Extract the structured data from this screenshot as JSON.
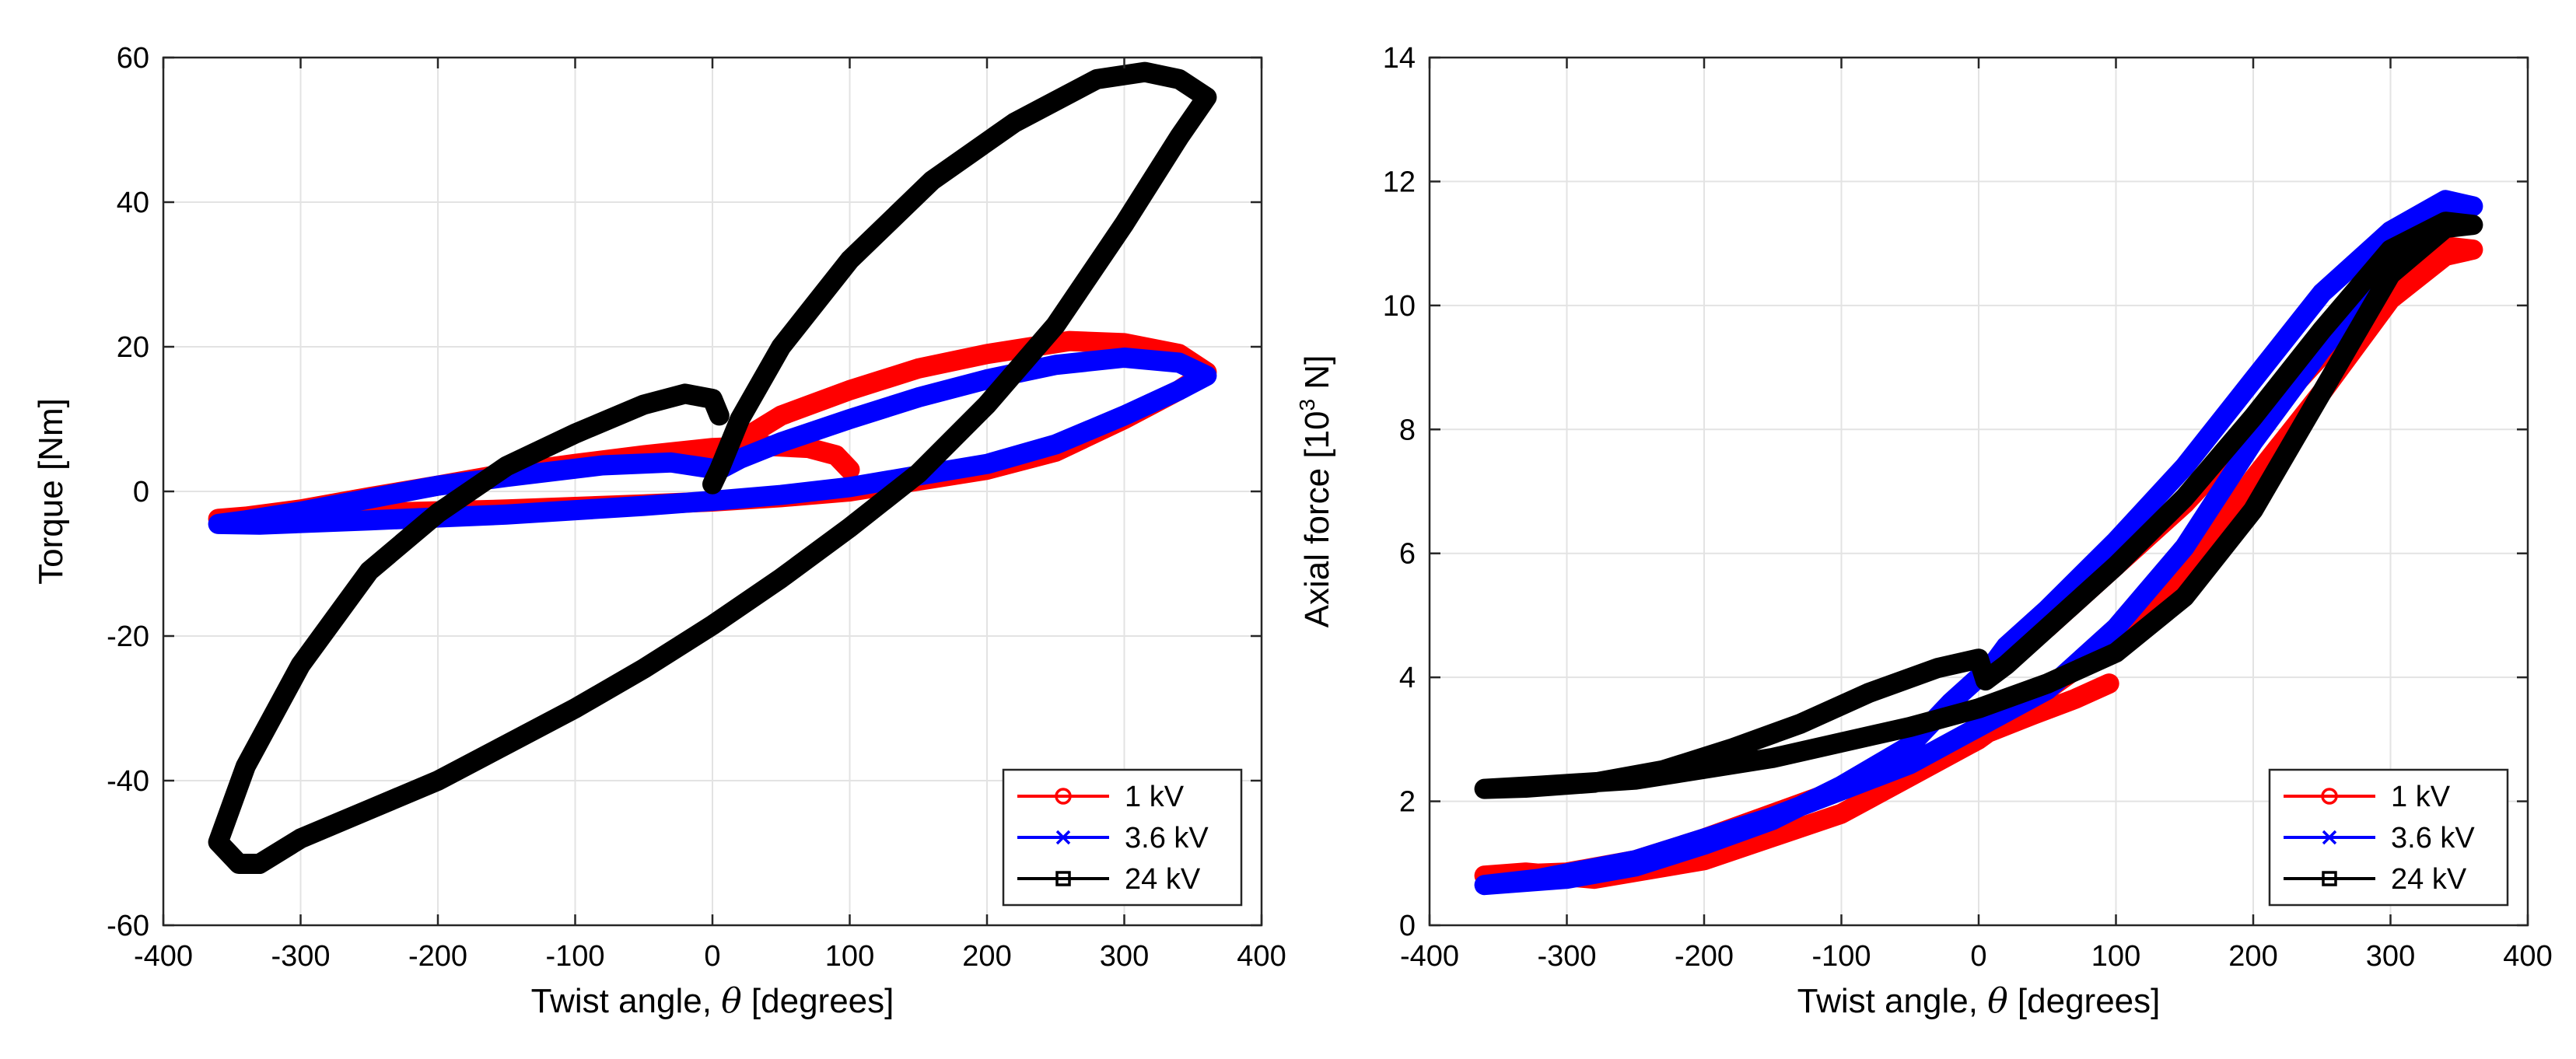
{
  "chart_data": [
    {
      "type": "line",
      "title": "",
      "xlabel_prefix": "Twist angle, ",
      "xlabel_symbol": "θ",
      "xlabel_suffix": " [degrees]",
      "ylabel": "Torque [Nm]",
      "xlim": [
        -400,
        400
      ],
      "ylim": [
        -60,
        60
      ],
      "xticks": [
        -400,
        -300,
        -200,
        -100,
        0,
        100,
        200,
        300,
        400
      ],
      "yticks": [
        -60,
        -40,
        -20,
        0,
        20,
        40,
        60
      ],
      "grid": true,
      "legend_position": "bottom-right",
      "series": [
        {
          "name": "1 kV",
          "color": "#ff0000",
          "marker": "circle",
          "points": [
            [
              100,
              3
            ],
            [
              90,
              5
            ],
            [
              70,
              6
            ],
            [
              40,
              6.3
            ],
            [
              0,
              6
            ],
            [
              -50,
              5
            ],
            [
              -100,
              3.8
            ],
            [
              -150,
              2.5
            ],
            [
              -200,
              0.8
            ],
            [
              -250,
              -0.8
            ],
            [
              -300,
              -2.5
            ],
            [
              -340,
              -3.5
            ],
            [
              -360,
              -3.8
            ],
            [
              -330,
              -3.6
            ],
            [
              -250,
              -3
            ],
            [
              -150,
              -2.5
            ],
            [
              -50,
              -1.8
            ],
            [
              0,
              -1.4
            ],
            [
              50,
              -0.8
            ],
            [
              100,
              0
            ],
            [
              150,
              1.5
            ],
            [
              200,
              3
            ],
            [
              250,
              5.5
            ],
            [
              300,
              10
            ],
            [
              340,
              14
            ],
            [
              360,
              16.5
            ],
            [
              340,
              19
            ],
            [
              300,
              20.5
            ],
            [
              260,
              20.8
            ],
            [
              200,
              19
            ],
            [
              150,
              17
            ],
            [
              100,
              14
            ],
            [
              50,
              10.5
            ],
            [
              20,
              7
            ],
            [
              0,
              4
            ]
          ]
        },
        {
          "name": "3.6 kV",
          "color": "#0000ff",
          "marker": "x",
          "points": [
            [
              5,
              3
            ],
            [
              -30,
              4
            ],
            [
              -80,
              3.6
            ],
            [
              -150,
              2
            ],
            [
              -200,
              0.8
            ],
            [
              -250,
              -1
            ],
            [
              -300,
              -2.8
            ],
            [
              -340,
              -4
            ],
            [
              -360,
              -4.5
            ],
            [
              -330,
              -4.6
            ],
            [
              -250,
              -4
            ],
            [
              -150,
              -3.2
            ],
            [
              -50,
              -2
            ],
            [
              0,
              -1.3
            ],
            [
              50,
              -0.5
            ],
            [
              100,
              0.6
            ],
            [
              150,
              2.2
            ],
            [
              200,
              3.8
            ],
            [
              250,
              6.5
            ],
            [
              300,
              10.5
            ],
            [
              340,
              14
            ],
            [
              360,
              16
            ],
            [
              340,
              17.8
            ],
            [
              300,
              18.5
            ],
            [
              250,
              17.5
            ],
            [
              200,
              15.5
            ],
            [
              150,
              13
            ],
            [
              100,
              10
            ],
            [
              50,
              6.8
            ],
            [
              20,
              4.5
            ],
            [
              5,
              3
            ]
          ]
        },
        {
          "name": "24 kV",
          "color": "#000000",
          "marker": "square",
          "points": [
            [
              5,
              10.5
            ],
            [
              0,
              12.8
            ],
            [
              -20,
              13.5
            ],
            [
              -50,
              12
            ],
            [
              -100,
              8
            ],
            [
              -150,
              3.5
            ],
            [
              -200,
              -3
            ],
            [
              -250,
              -11
            ],
            [
              -300,
              -24
            ],
            [
              -340,
              -38
            ],
            [
              -360,
              -48.5
            ],
            [
              -345,
              -51.5
            ],
            [
              -330,
              -51.5
            ],
            [
              -300,
              -48
            ],
            [
              -250,
              -44
            ],
            [
              -200,
              -40
            ],
            [
              -150,
              -35
            ],
            [
              -100,
              -30
            ],
            [
              -50,
              -24.5
            ],
            [
              0,
              -18.5
            ],
            [
              50,
              -12
            ],
            [
              100,
              -5
            ],
            [
              150,
              2.5
            ],
            [
              200,
              12
            ],
            [
              250,
              23
            ],
            [
              300,
              37
            ],
            [
              340,
              49
            ],
            [
              360,
              54.5
            ],
            [
              340,
              57
            ],
            [
              315,
              58
            ],
            [
              280,
              57
            ],
            [
              220,
              51
            ],
            [
              160,
              43
            ],
            [
              100,
              32
            ],
            [
              50,
              20
            ],
            [
              20,
              10
            ],
            [
              5,
              3
            ],
            [
              0,
              1
            ]
          ]
        }
      ]
    },
    {
      "type": "line",
      "title": "",
      "xlabel_prefix": "Twist angle, ",
      "xlabel_symbol": "θ",
      "xlabel_suffix": " [degrees]",
      "ylabel_prefix": "Axial force [10",
      "ylabel_sup": "3",
      "ylabel_suffix": " N]",
      "xlim": [
        -400,
        400
      ],
      "ylim": [
        0,
        14
      ],
      "xticks": [
        -400,
        -300,
        -200,
        -100,
        0,
        100,
        200,
        300,
        400
      ],
      "yticks": [
        0,
        2,
        4,
        6,
        8,
        10,
        12,
        14
      ],
      "grid": true,
      "legend_position": "bottom-right",
      "series": [
        {
          "name": "1 kV",
          "color": "#ff0000",
          "marker": "circle",
          "points": [
            [
              95,
              3.9
            ],
            [
              70,
              3.65
            ],
            [
              40,
              3.4
            ],
            [
              0,
              3.05
            ],
            [
              -50,
              2.6
            ],
            [
              -100,
              2.2
            ],
            [
              -150,
              1.8
            ],
            [
              -200,
              1.4
            ],
            [
              -250,
              1.05
            ],
            [
              -300,
              0.85
            ],
            [
              -360,
              0.8
            ],
            [
              -330,
              0.85
            ],
            [
              -280,
              0.75
            ],
            [
              -200,
              1.05
            ],
            [
              -100,
              1.8
            ],
            [
              0,
              3
            ],
            [
              50,
              3.8
            ],
            [
              100,
              4.6
            ],
            [
              150,
              5.6
            ],
            [
              200,
              7.2
            ],
            [
              250,
              8.6
            ],
            [
              300,
              10.1
            ],
            [
              340,
              10.8
            ],
            [
              360,
              10.9
            ],
            [
              340,
              10.95
            ],
            [
              300,
              10.5
            ],
            [
              250,
              9.2
            ],
            [
              200,
              8
            ],
            [
              150,
              6.8
            ],
            [
              100,
              5.8
            ],
            [
              50,
              4.8
            ],
            [
              20,
              4.3
            ],
            [
              10,
              4.1
            ]
          ]
        },
        {
          "name": "3.6 kV",
          "color": "#0000ff",
          "marker": "x",
          "points": [
            [
              10,
              4.2
            ],
            [
              -20,
              3.6
            ],
            [
              -50,
              2.9
            ],
            [
              -100,
              2.25
            ],
            [
              -150,
              1.7
            ],
            [
              -200,
              1.3
            ],
            [
              -250,
              0.95
            ],
            [
              -300,
              0.75
            ],
            [
              -360,
              0.65
            ],
            [
              -320,
              0.75
            ],
            [
              -250,
              1.05
            ],
            [
              -150,
              1.75
            ],
            [
              -50,
              2.6
            ],
            [
              0,
              3.2
            ],
            [
              50,
              3.8
            ],
            [
              100,
              4.8
            ],
            [
              150,
              6.1
            ],
            [
              200,
              7.8
            ],
            [
              250,
              9.3
            ],
            [
              300,
              10.6
            ],
            [
              340,
              11.4
            ],
            [
              360,
              11.6
            ],
            [
              340,
              11.7
            ],
            [
              300,
              11.2
            ],
            [
              250,
              10.2
            ],
            [
              200,
              8.8
            ],
            [
              150,
              7.4
            ],
            [
              100,
              6.2
            ],
            [
              50,
              5.1
            ],
            [
              20,
              4.5
            ],
            [
              10,
              4.2
            ]
          ]
        },
        {
          "name": "24 kV",
          "color": "#000000",
          "marker": "square",
          "points": [
            [
              5,
              3.95
            ],
            [
              0,
              4.3
            ],
            [
              -30,
              4.15
            ],
            [
              -80,
              3.75
            ],
            [
              -130,
              3.25
            ],
            [
              -180,
              2.85
            ],
            [
              -230,
              2.5
            ],
            [
              -280,
              2.3
            ],
            [
              -330,
              2.22
            ],
            [
              -360,
              2.2
            ],
            [
              -320,
              2.25
            ],
            [
              -250,
              2.35
            ],
            [
              -150,
              2.7
            ],
            [
              -50,
              3.2
            ],
            [
              0,
              3.5
            ],
            [
              50,
              3.9
            ],
            [
              100,
              4.4
            ],
            [
              150,
              5.3
            ],
            [
              200,
              6.7
            ],
            [
              250,
              8.6
            ],
            [
              300,
              10.5
            ],
            [
              340,
              11.25
            ],
            [
              360,
              11.3
            ],
            [
              340,
              11.35
            ],
            [
              300,
              10.9
            ],
            [
              250,
              9.6
            ],
            [
              200,
              8.2
            ],
            [
              150,
              6.9
            ],
            [
              100,
              5.8
            ],
            [
              50,
              4.8
            ],
            [
              20,
              4.2
            ],
            [
              5,
              3.95
            ]
          ]
        }
      ]
    }
  ]
}
